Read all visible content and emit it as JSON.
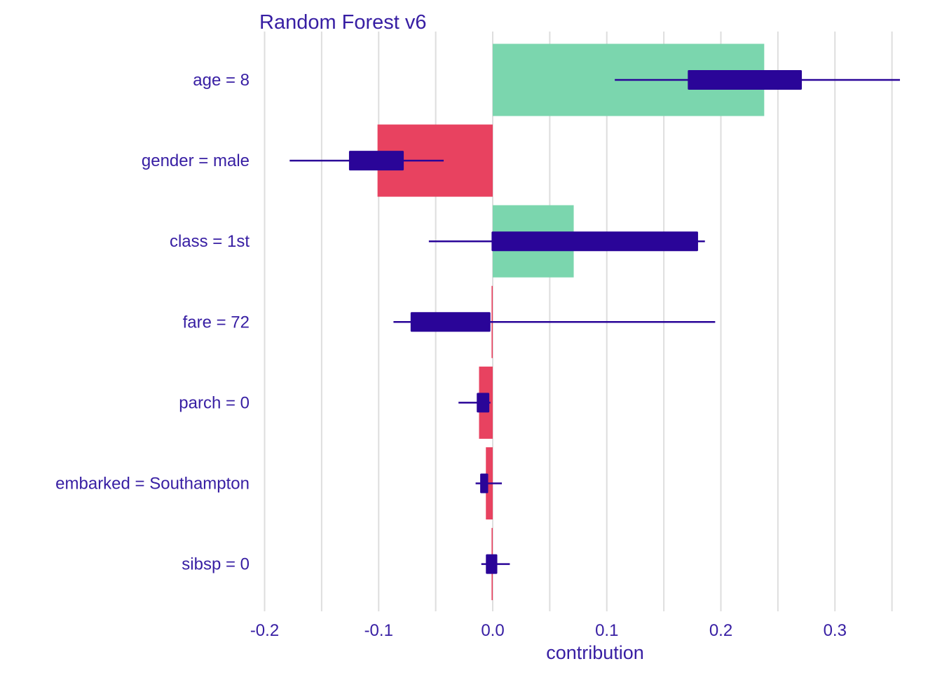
{
  "chart_data": {
    "type": "bar",
    "title": "Random Forest v6",
    "xlabel": "contribution",
    "ylabel": "",
    "xlim": [
      -0.2,
      0.36
    ],
    "xticks": [
      -0.2,
      -0.1,
      0.0,
      0.1,
      0.2,
      0.3
    ],
    "xtick_labels": [
      "-0.2",
      "-0.1",
      "0.0",
      "0.1",
      "0.2",
      "0.3"
    ],
    "grid": true,
    "legend": "none",
    "colors": {
      "positive": "#7bd6ae",
      "negative": "#e84260",
      "boxplot": "#2a0598",
      "grid": "#dedede",
      "text": "#371ea3"
    },
    "categories": [
      "age = 8",
      "gender = male",
      "class = 1st",
      "fare = 72",
      "parch = 0",
      "embarked = Southampton",
      "sibsp = 0"
    ],
    "values": [
      0.238,
      -0.101,
      0.071,
      -0.001,
      -0.012,
      -0.006,
      -0.001
    ],
    "intervals": [
      {
        "min": 0.107,
        "q1": 0.171,
        "q3": 0.271,
        "max": 0.357
      },
      {
        "min": -0.178,
        "q1": -0.126,
        "q3": -0.078,
        "max": -0.043
      },
      {
        "min": -0.056,
        "q1": -0.001,
        "q3": 0.18,
        "max": 0.186
      },
      {
        "min": -0.087,
        "q1": -0.072,
        "q3": -0.002,
        "max": 0.195
      },
      {
        "min": -0.03,
        "q1": -0.014,
        "q3": -0.003,
        "max": -0.002
      },
      {
        "min": -0.015,
        "q1": -0.011,
        "q3": -0.004,
        "max": 0.008
      },
      {
        "min": -0.01,
        "q1": -0.006,
        "q3": 0.004,
        "max": 0.015
      }
    ]
  }
}
